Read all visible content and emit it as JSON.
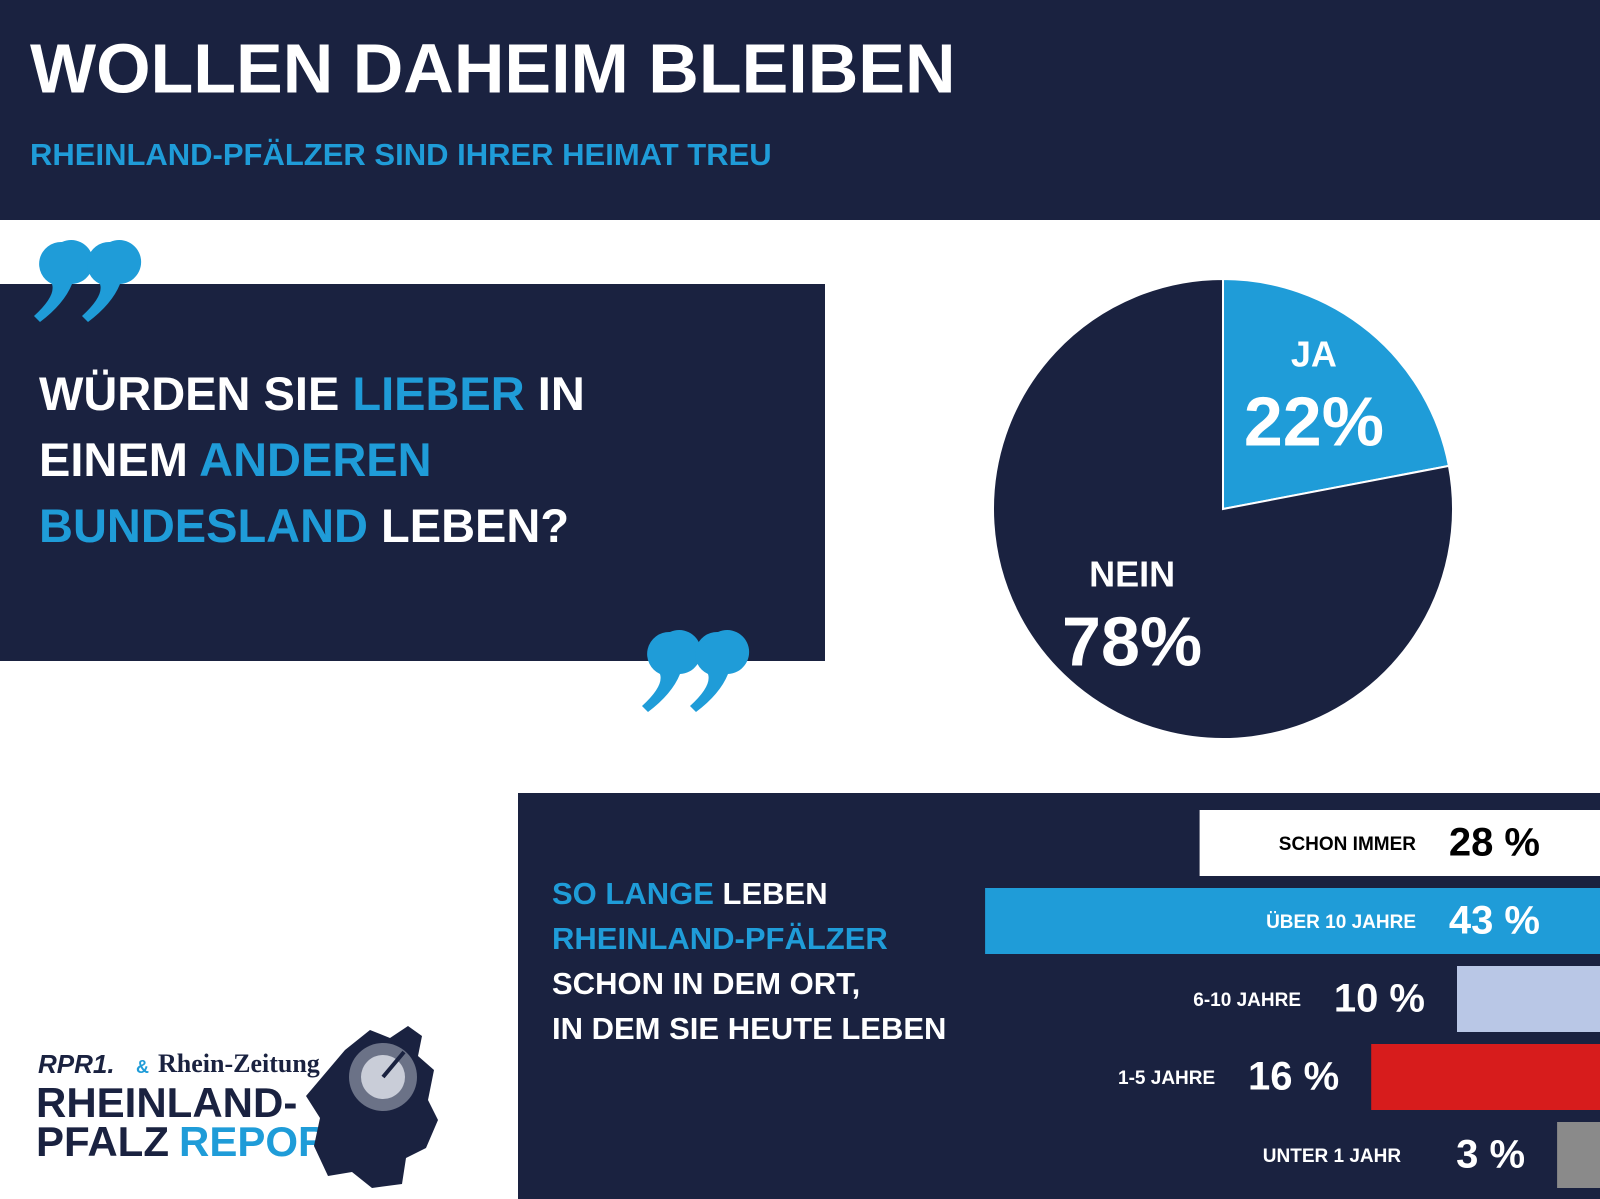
{
  "header": {
    "title": "WOLLEN DAHEIM BLEIBEN",
    "subtitle": "RHEINLAND-PFÄLZER SIND IHRER HEIMAT TREU"
  },
  "question": {
    "lines": [
      [
        {
          "text": "WÜRDEN SIE ",
          "highlight": false
        },
        {
          "text": "LIEBER",
          "highlight": true
        },
        {
          "text": " IN",
          "highlight": false
        }
      ],
      [
        {
          "text": "EINEM ",
          "highlight": false
        },
        {
          "text": "ANDEREN",
          "highlight": true
        }
      ],
      [
        {
          "text": "BUNDESLAND",
          "highlight": true
        },
        {
          "text": " LEBEN?",
          "highlight": false
        }
      ]
    ]
  },
  "chart_data": [
    {
      "type": "pie",
      "categories": [
        "JA",
        "NEIN"
      ],
      "values": [
        22,
        78
      ],
      "value_labels": [
        "22%",
        "78%"
      ],
      "colors": [
        "#1f9cd8",
        "#1a2240"
      ]
    },
    {
      "type": "bar",
      "orientation": "horizontal",
      "title_lines": [
        [
          {
            "text": "SO LANGE",
            "highlight": true
          },
          {
            "text": " LEBEN",
            "highlight": false
          }
        ],
        [
          {
            "text": "RHEINLAND-PFÄLZER",
            "highlight": true
          }
        ],
        [
          {
            "text": "SCHON IN DEM ORT,",
            "highlight": false
          }
        ],
        [
          {
            "text": "IN DEM SIE HEUTE LEBEN",
            "highlight": false
          }
        ]
      ],
      "categories": [
        "SCHON IMMER",
        "ÜBER 10 JAHRE",
        "6-10 JAHRE",
        "1-5 JAHRE",
        "UNTER 1 JAHR"
      ],
      "values": [
        28,
        43,
        10,
        16,
        3
      ],
      "value_labels": [
        "28 %",
        "43 %",
        "10 %",
        "16 %",
        "3 %"
      ],
      "colors": [
        "#ffffff",
        "#1f9cd8",
        "#b9c7e6",
        "#d71c1c",
        "#8a8a8a"
      ]
    }
  ],
  "logo": {
    "brand": "RPR1.",
    "ampersand": "&",
    "partner": "Rhein-Zeitung",
    "line1": "RHEINLAND-",
    "line2a": "PFALZ",
    "line2b": "REPORT"
  }
}
